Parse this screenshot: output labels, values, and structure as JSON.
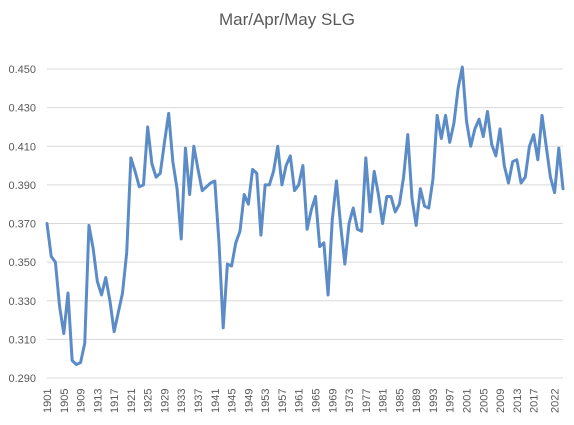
{
  "chart_data": {
    "type": "line",
    "title": "Mar/Apr/May SLG",
    "xlabel": "",
    "ylabel": "",
    "ylim": [
      0.29,
      0.45
    ],
    "yticks": [
      "0.290",
      "0.310",
      "0.330",
      "0.350",
      "0.370",
      "0.390",
      "0.410",
      "0.430",
      "0.450"
    ],
    "xticks": [
      1901,
      1905,
      1909,
      1913,
      1917,
      1921,
      1925,
      1929,
      1933,
      1937,
      1941,
      1945,
      1949,
      1953,
      1957,
      1961,
      1965,
      1969,
      1973,
      1977,
      1981,
      1985,
      1989,
      1993,
      1997,
      2001,
      2005,
      2009,
      2013,
      2017,
      2022
    ],
    "grid": true,
    "legend": "none",
    "line_color": "#5B8CC7",
    "grid_color": "#d9d9d9",
    "series": [
      {
        "x": [
          1901,
          1902,
          1903,
          1904,
          1905,
          1906,
          1907,
          1908,
          1909,
          1910,
          1911,
          1912,
          1913,
          1914,
          1915,
          1916,
          1917,
          1918,
          1919,
          1920,
          1921,
          1922,
          1923,
          1924,
          1925,
          1926,
          1927,
          1928,
          1929,
          1930,
          1931,
          1932,
          1933,
          1934,
          1935,
          1936,
          1937,
          1938,
          1939,
          1940,
          1941,
          1942,
          1943,
          1944,
          1945,
          1946,
          1947,
          1948,
          1949,
          1950,
          1951,
          1952,
          1953,
          1954,
          1955,
          1956,
          1957,
          1958,
          1959,
          1960,
          1961,
          1962,
          1963,
          1964,
          1965,
          1966,
          1967,
          1968,
          1969,
          1970,
          1971,
          1972,
          1973,
          1974,
          1975,
          1976,
          1977,
          1978,
          1979,
          1980,
          1981,
          1982,
          1983,
          1984,
          1985,
          1986,
          1987,
          1988,
          1989,
          1990,
          1991,
          1992,
          1993,
          1994,
          1995,
          1996,
          1997,
          1998,
          1999,
          2000,
          2001,
          2002,
          2003,
          2004,
          2005,
          2006,
          2007,
          2008,
          2009,
          2010,
          2011,
          2012,
          2013,
          2014,
          2015,
          2016,
          2017,
          2018,
          2019,
          2021,
          2022,
          2023,
          2024
        ],
        "values": [
          0.37,
          0.353,
          0.35,
          0.327,
          0.313,
          0.334,
          0.299,
          0.297,
          0.298,
          0.308,
          0.369,
          0.357,
          0.34,
          0.333,
          0.342,
          0.33,
          0.314,
          0.324,
          0.334,
          0.355,
          0.404,
          0.397,
          0.389,
          0.39,
          0.42,
          0.401,
          0.394,
          0.396,
          0.412,
          0.427,
          0.402,
          0.388,
          0.362,
          0.409,
          0.385,
          0.41,
          0.398,
          0.387,
          0.389,
          0.391,
          0.392,
          0.36,
          0.316,
          0.349,
          0.348,
          0.36,
          0.366,
          0.385,
          0.38,
          0.398,
          0.396,
          0.364,
          0.39,
          0.39,
          0.397,
          0.41,
          0.39,
          0.4,
          0.405,
          0.387,
          0.39,
          0.4,
          0.367,
          0.377,
          0.384,
          0.358,
          0.36,
          0.333,
          0.372,
          0.392,
          0.369,
          0.349,
          0.37,
          0.378,
          0.367,
          0.366,
          0.404,
          0.376,
          0.397,
          0.385,
          0.37,
          0.384,
          0.384,
          0.376,
          0.38,
          0.394,
          0.416,
          0.383,
          0.369,
          0.388,
          0.379,
          0.378,
          0.393,
          0.426,
          0.414,
          0.426,
          0.412,
          0.422,
          0.44,
          0.451,
          0.423,
          0.41,
          0.419,
          0.424,
          0.415,
          0.428,
          0.411,
          0.405,
          0.419,
          0.4,
          0.391,
          0.402,
          0.403,
          0.391,
          0.394,
          0.41,
          0.416,
          0.403,
          0.426,
          0.394,
          0.386,
          0.409,
          0.388
        ]
      }
    ]
  }
}
